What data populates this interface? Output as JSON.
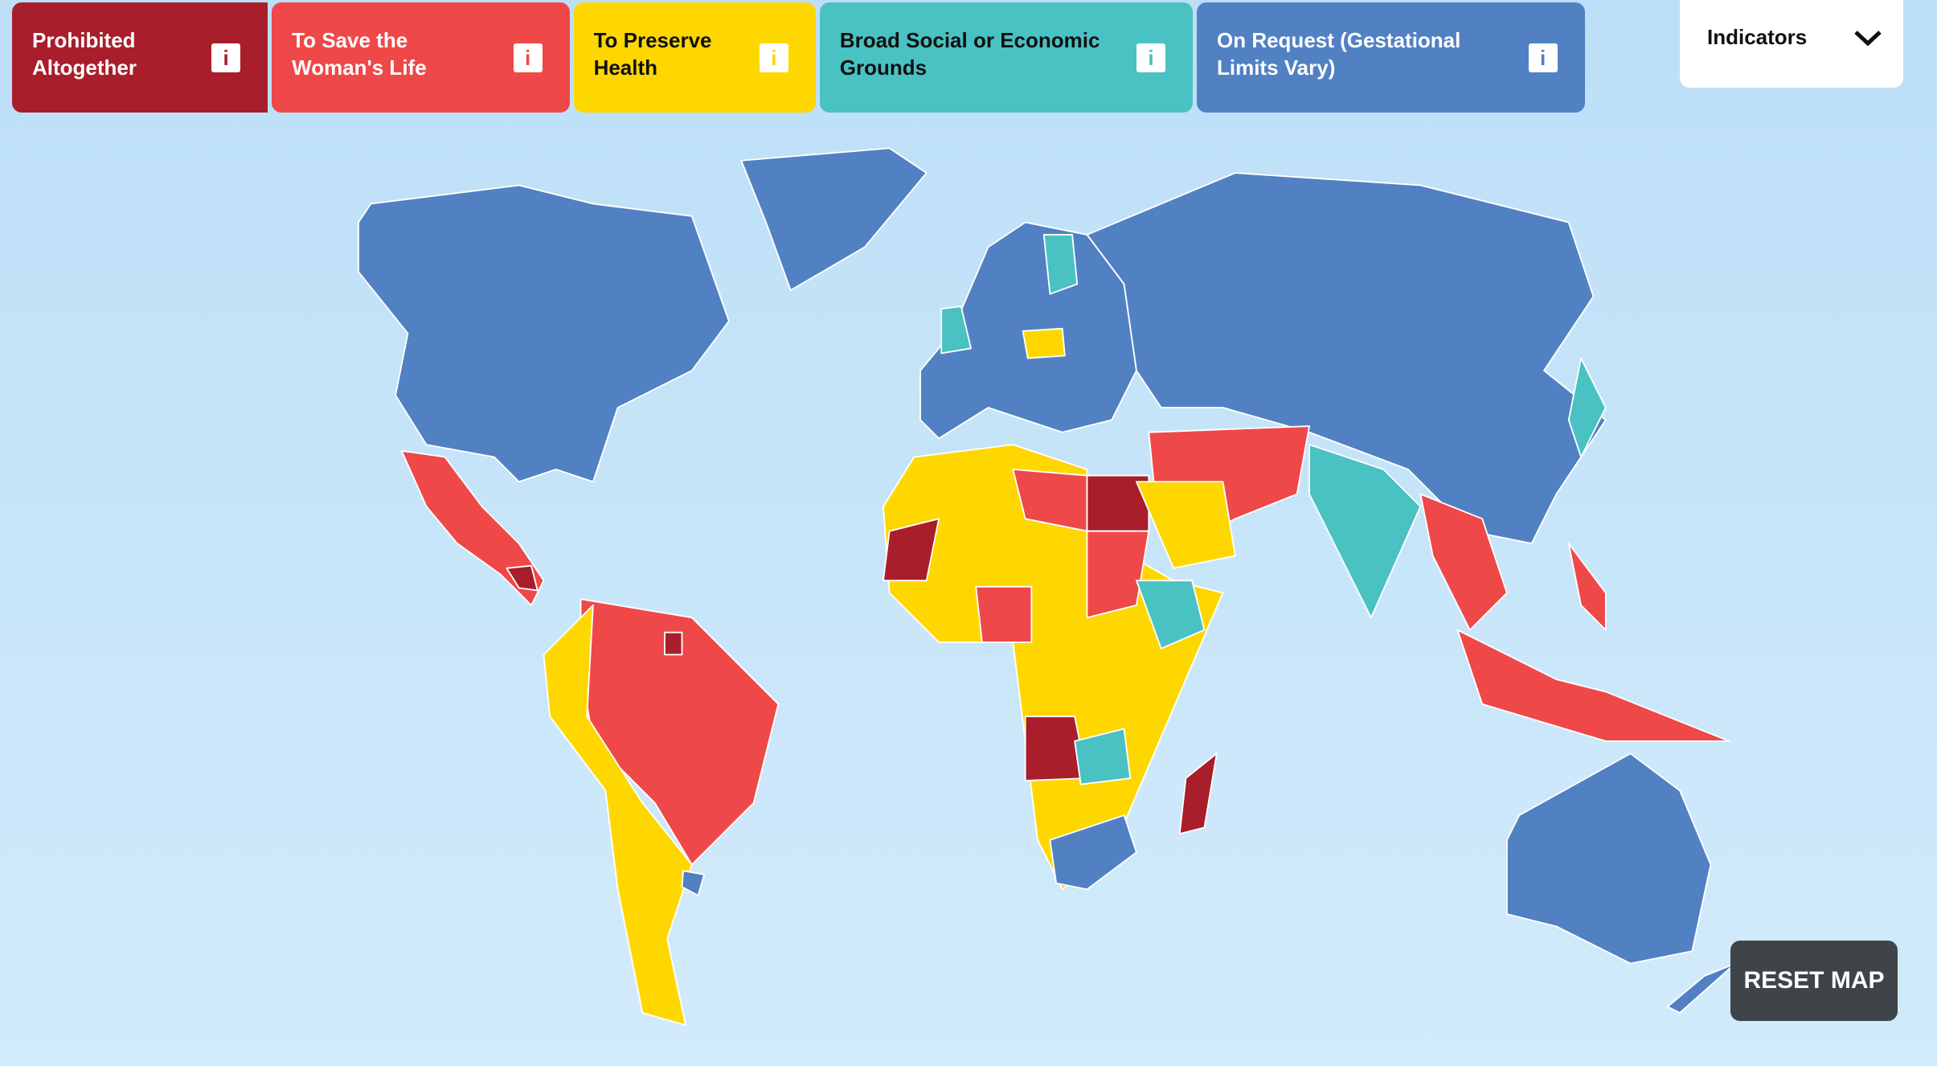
{
  "legend": [
    {
      "label": "Prohibited Altogether",
      "info": "i",
      "color": "#a81e2a"
    },
    {
      "label": "To Save the Woman's Life",
      "info": "i",
      "color": "#ef4848"
    },
    {
      "label": "To Preserve Health",
      "info": "i",
      "color": "#ffd700"
    },
    {
      "label": "Broad Social or Economic Grounds",
      "info": "i",
      "color": "#4ac1c3"
    },
    {
      "label": "On Request (Gestational Limits Vary)",
      "info": "i",
      "color": "#5181c3"
    }
  ],
  "indicators": {
    "label": "Indicators"
  },
  "reset_button": {
    "label": "RESET MAP"
  }
}
